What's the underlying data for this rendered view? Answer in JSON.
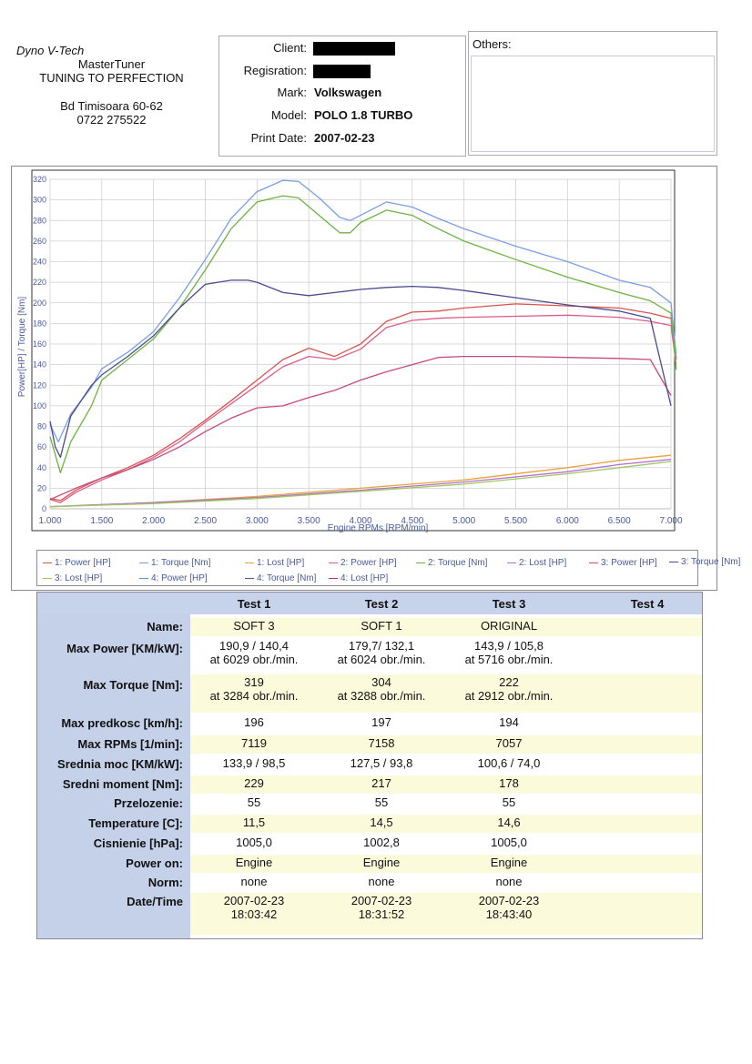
{
  "company": {
    "name": "Dyno V-Tech",
    "line1": "MasterTuner",
    "line2": "TUNING TO PERFECTION",
    "address": "Bd Timisoara 60-62",
    "phone": "0722 275522"
  },
  "info": {
    "client_label": "Client:",
    "registration_label": "Regisration:",
    "mark_label": "Mark:",
    "mark": "Volkswagen",
    "model_label": "Model:",
    "model": "POLO 1.8 TURBO",
    "print_date_label": "Print Date:",
    "print_date": "2007-02-23"
  },
  "others_label": "Others:",
  "chart_data": {
    "type": "line",
    "title": "",
    "xlabel": "Engine RPMs [RPM/min]",
    "ylabel": "Power[HP] / Torque [Nm]",
    "xlim": [
      1000,
      7000
    ],
    "ylim": [
      0,
      320
    ],
    "x_ticks": [
      1000,
      1500,
      2000,
      2500,
      3000,
      3500,
      4000,
      4500,
      5000,
      5500,
      6000,
      6500,
      7000
    ],
    "x_tick_labels": [
      "1.000",
      "1.500",
      "2.000",
      "2.500",
      "3.000",
      "3.500",
      "4.000",
      "4.500",
      "5.000",
      "5.500",
      "6.000",
      "6.500",
      "7.000"
    ],
    "y_ticks": [
      0,
      20,
      40,
      60,
      80,
      100,
      120,
      140,
      160,
      180,
      200,
      220,
      240,
      260,
      280,
      300,
      320
    ],
    "grid": true,
    "legend_position": "bottom",
    "series": [
      {
        "name": "1: Power [HP]",
        "color": "#d9534f",
        "x": [
          1000,
          1100,
          1250,
          1500,
          1750,
          2000,
          2250,
          2500,
          2750,
          3000,
          3250,
          3500,
          3750,
          4000,
          4250,
          4500,
          4750,
          5000,
          5500,
          6000,
          6500,
          6800,
          7000,
          7050
        ],
        "y": [
          10,
          8,
          18,
          30,
          40,
          52,
          68,
          86,
          105,
          125,
          145,
          156,
          148,
          160,
          182,
          191,
          192,
          195,
          199,
          197,
          195,
          190,
          185,
          145
        ]
      },
      {
        "name": "1: Torque [Nm]",
        "color": "#7a9ee6",
        "x": [
          1000,
          1080,
          1200,
          1400,
          1500,
          1750,
          2000,
          2250,
          2500,
          2750,
          3000,
          3250,
          3400,
          3600,
          3800,
          3900,
          4000,
          4250,
          4500,
          4750,
          5000,
          5500,
          6000,
          6500,
          6800,
          7000,
          7050
        ],
        "y": [
          82,
          65,
          92,
          118,
          136,
          152,
          172,
          205,
          242,
          282,
          308,
          319,
          318,
          302,
          283,
          280,
          285,
          298,
          293,
          282,
          272,
          255,
          240,
          222,
          215,
          200,
          150
        ]
      },
      {
        "name": "1: Lost [HP]",
        "color": "#e8a33a",
        "x": [
          1000,
          2000,
          3000,
          4000,
          5000,
          6000,
          6500,
          7000
        ],
        "y": [
          2,
          6,
          12,
          20,
          28,
          40,
          47,
          52
        ]
      },
      {
        "name": "2: Power [HP]",
        "color": "#e05a8a",
        "x": [
          1000,
          1100,
          1250,
          1500,
          1750,
          2000,
          2250,
          2500,
          2750,
          3000,
          3250,
          3500,
          3750,
          4000,
          4250,
          4500,
          4750,
          5000,
          5500,
          6000,
          6500,
          6800,
          7000,
          7050
        ],
        "y": [
          9,
          6,
          16,
          28,
          38,
          50,
          65,
          84,
          102,
          120,
          138,
          148,
          145,
          155,
          176,
          183,
          185,
          186,
          187,
          188,
          186,
          182,
          178,
          140
        ]
      },
      {
        "name": "2: Torque [Nm]",
        "color": "#6db33f",
        "x": [
          1000,
          1100,
          1200,
          1400,
          1500,
          1750,
          2000,
          2250,
          2500,
          2750,
          3000,
          3250,
          3400,
          3600,
          3800,
          3900,
          4000,
          4250,
          4500,
          4750,
          5000,
          5500,
          6000,
          6500,
          6800,
          7000,
          7050
        ],
        "y": [
          70,
          35,
          65,
          100,
          125,
          145,
          165,
          195,
          232,
          272,
          298,
          304,
          302,
          285,
          268,
          268,
          278,
          290,
          285,
          272,
          260,
          242,
          225,
          210,
          202,
          190,
          135
        ]
      },
      {
        "name": "2: Lost [HP]",
        "color": "#b070d0",
        "x": [
          1000,
          2000,
          3000,
          4000,
          5000,
          6000,
          6500,
          7000
        ],
        "y": [
          2,
          6,
          11,
          18,
          26,
          36,
          43,
          48
        ]
      },
      {
        "name": "3: Power [HP]",
        "color": "#c84a7a",
        "x": [
          1000,
          1250,
          1500,
          1750,
          2000,
          2250,
          2500,
          2750,
          3000,
          3250,
          3500,
          3750,
          4000,
          4250,
          4500,
          4750,
          5000,
          5500,
          6000,
          6500,
          6800,
          7000
        ],
        "y": [
          9,
          20,
          30,
          38,
          48,
          60,
          75,
          88,
          98,
          100,
          108,
          115,
          125,
          133,
          140,
          147,
          148,
          148,
          147,
          146,
          145,
          110
        ]
      },
      {
        "name": "3: Torque [Nm]",
        "color": "#4a4a90",
        "x": [
          1000,
          1050,
          1100,
          1200,
          1400,
          1500,
          1750,
          2000,
          2250,
          2500,
          2750,
          2912,
          3000,
          3250,
          3500,
          3750,
          4000,
          4250,
          4500,
          4750,
          5000,
          5500,
          6000,
          6500,
          6800,
          7000
        ],
        "y": [
          85,
          60,
          50,
          90,
          120,
          130,
          148,
          168,
          195,
          218,
          222,
          222,
          220,
          210,
          207,
          210,
          213,
          215,
          216,
          215,
          212,
          205,
          198,
          192,
          185,
          100
        ]
      },
      {
        "name": "3: Lost [HP]",
        "color": "#a0c860",
        "x": [
          1000,
          2000,
          3000,
          4000,
          5000,
          6000,
          6500,
          7000
        ],
        "y": [
          2,
          5,
          10,
          17,
          24,
          34,
          40,
          46
        ]
      },
      {
        "name": "4: Power [HP]",
        "color": "#5b8fd0",
        "x": [],
        "y": []
      },
      {
        "name": "4: Torque [Nm]",
        "color": "#5a4a9a",
        "x": [],
        "y": []
      },
      {
        "name": "4: Lost [HP]",
        "color": "#c03050",
        "x": [],
        "y": []
      }
    ]
  },
  "results": {
    "headers": [
      "Test 1",
      "Test 2",
      "Test 3",
      "Test 4"
    ],
    "rows": [
      {
        "label": "Name:",
        "values": [
          "SOFT 3",
          "SOFT 1",
          "ORIGINAL",
          ""
        ]
      },
      {
        "label": "Max Power [KM/kW]:",
        "values": [
          "190,9 / 140,4\nat 6029 obr./min.",
          "179,7/ 132,1\nat 6024 obr./min.",
          "143,9 / 105,8\nat 5716 obr./min.",
          ""
        ]
      },
      {
        "label": "Max Torque [Nm]:",
        "values": [
          "319\nat 3284 obr./min.",
          "304\nat 3288 obr./min.",
          "222\nat 2912 obr./min.",
          ""
        ]
      },
      {
        "label": "Max predkosc [km/h]:",
        "values": [
          "196",
          "197",
          "194",
          ""
        ]
      },
      {
        "label": "Max RPMs [1/min]:",
        "values": [
          "7119",
          "7158",
          "7057",
          ""
        ]
      },
      {
        "label": "Srednia moc [KM/kW]:",
        "values": [
          "133,9 / 98,5",
          "127,5 / 93,8",
          "100,6 / 74,0",
          ""
        ]
      },
      {
        "label": "Sredni moment [Nm]:",
        "values": [
          "229",
          "217",
          "178",
          ""
        ]
      },
      {
        "label": "Przelozenie:",
        "values": [
          "55",
          "55",
          "55",
          ""
        ]
      },
      {
        "label": "Temperature [C]:",
        "values": [
          "11,5",
          "14,5",
          "14,6",
          ""
        ]
      },
      {
        "label": "Cisnienie [hPa]:",
        "values": [
          "1005,0",
          "1002,8",
          "1005,0",
          ""
        ]
      },
      {
        "label": "Power on:",
        "values": [
          "Engine",
          "Engine",
          "Engine",
          ""
        ]
      },
      {
        "label": "Norm:",
        "values": [
          "none",
          "none",
          "none",
          ""
        ]
      },
      {
        "label": "Date/Time",
        "values": [
          "2007-02-23\n18:03:42",
          "2007-02-23\n18:31:52",
          "2007-02-23\n18:43:40",
          ""
        ]
      }
    ]
  }
}
